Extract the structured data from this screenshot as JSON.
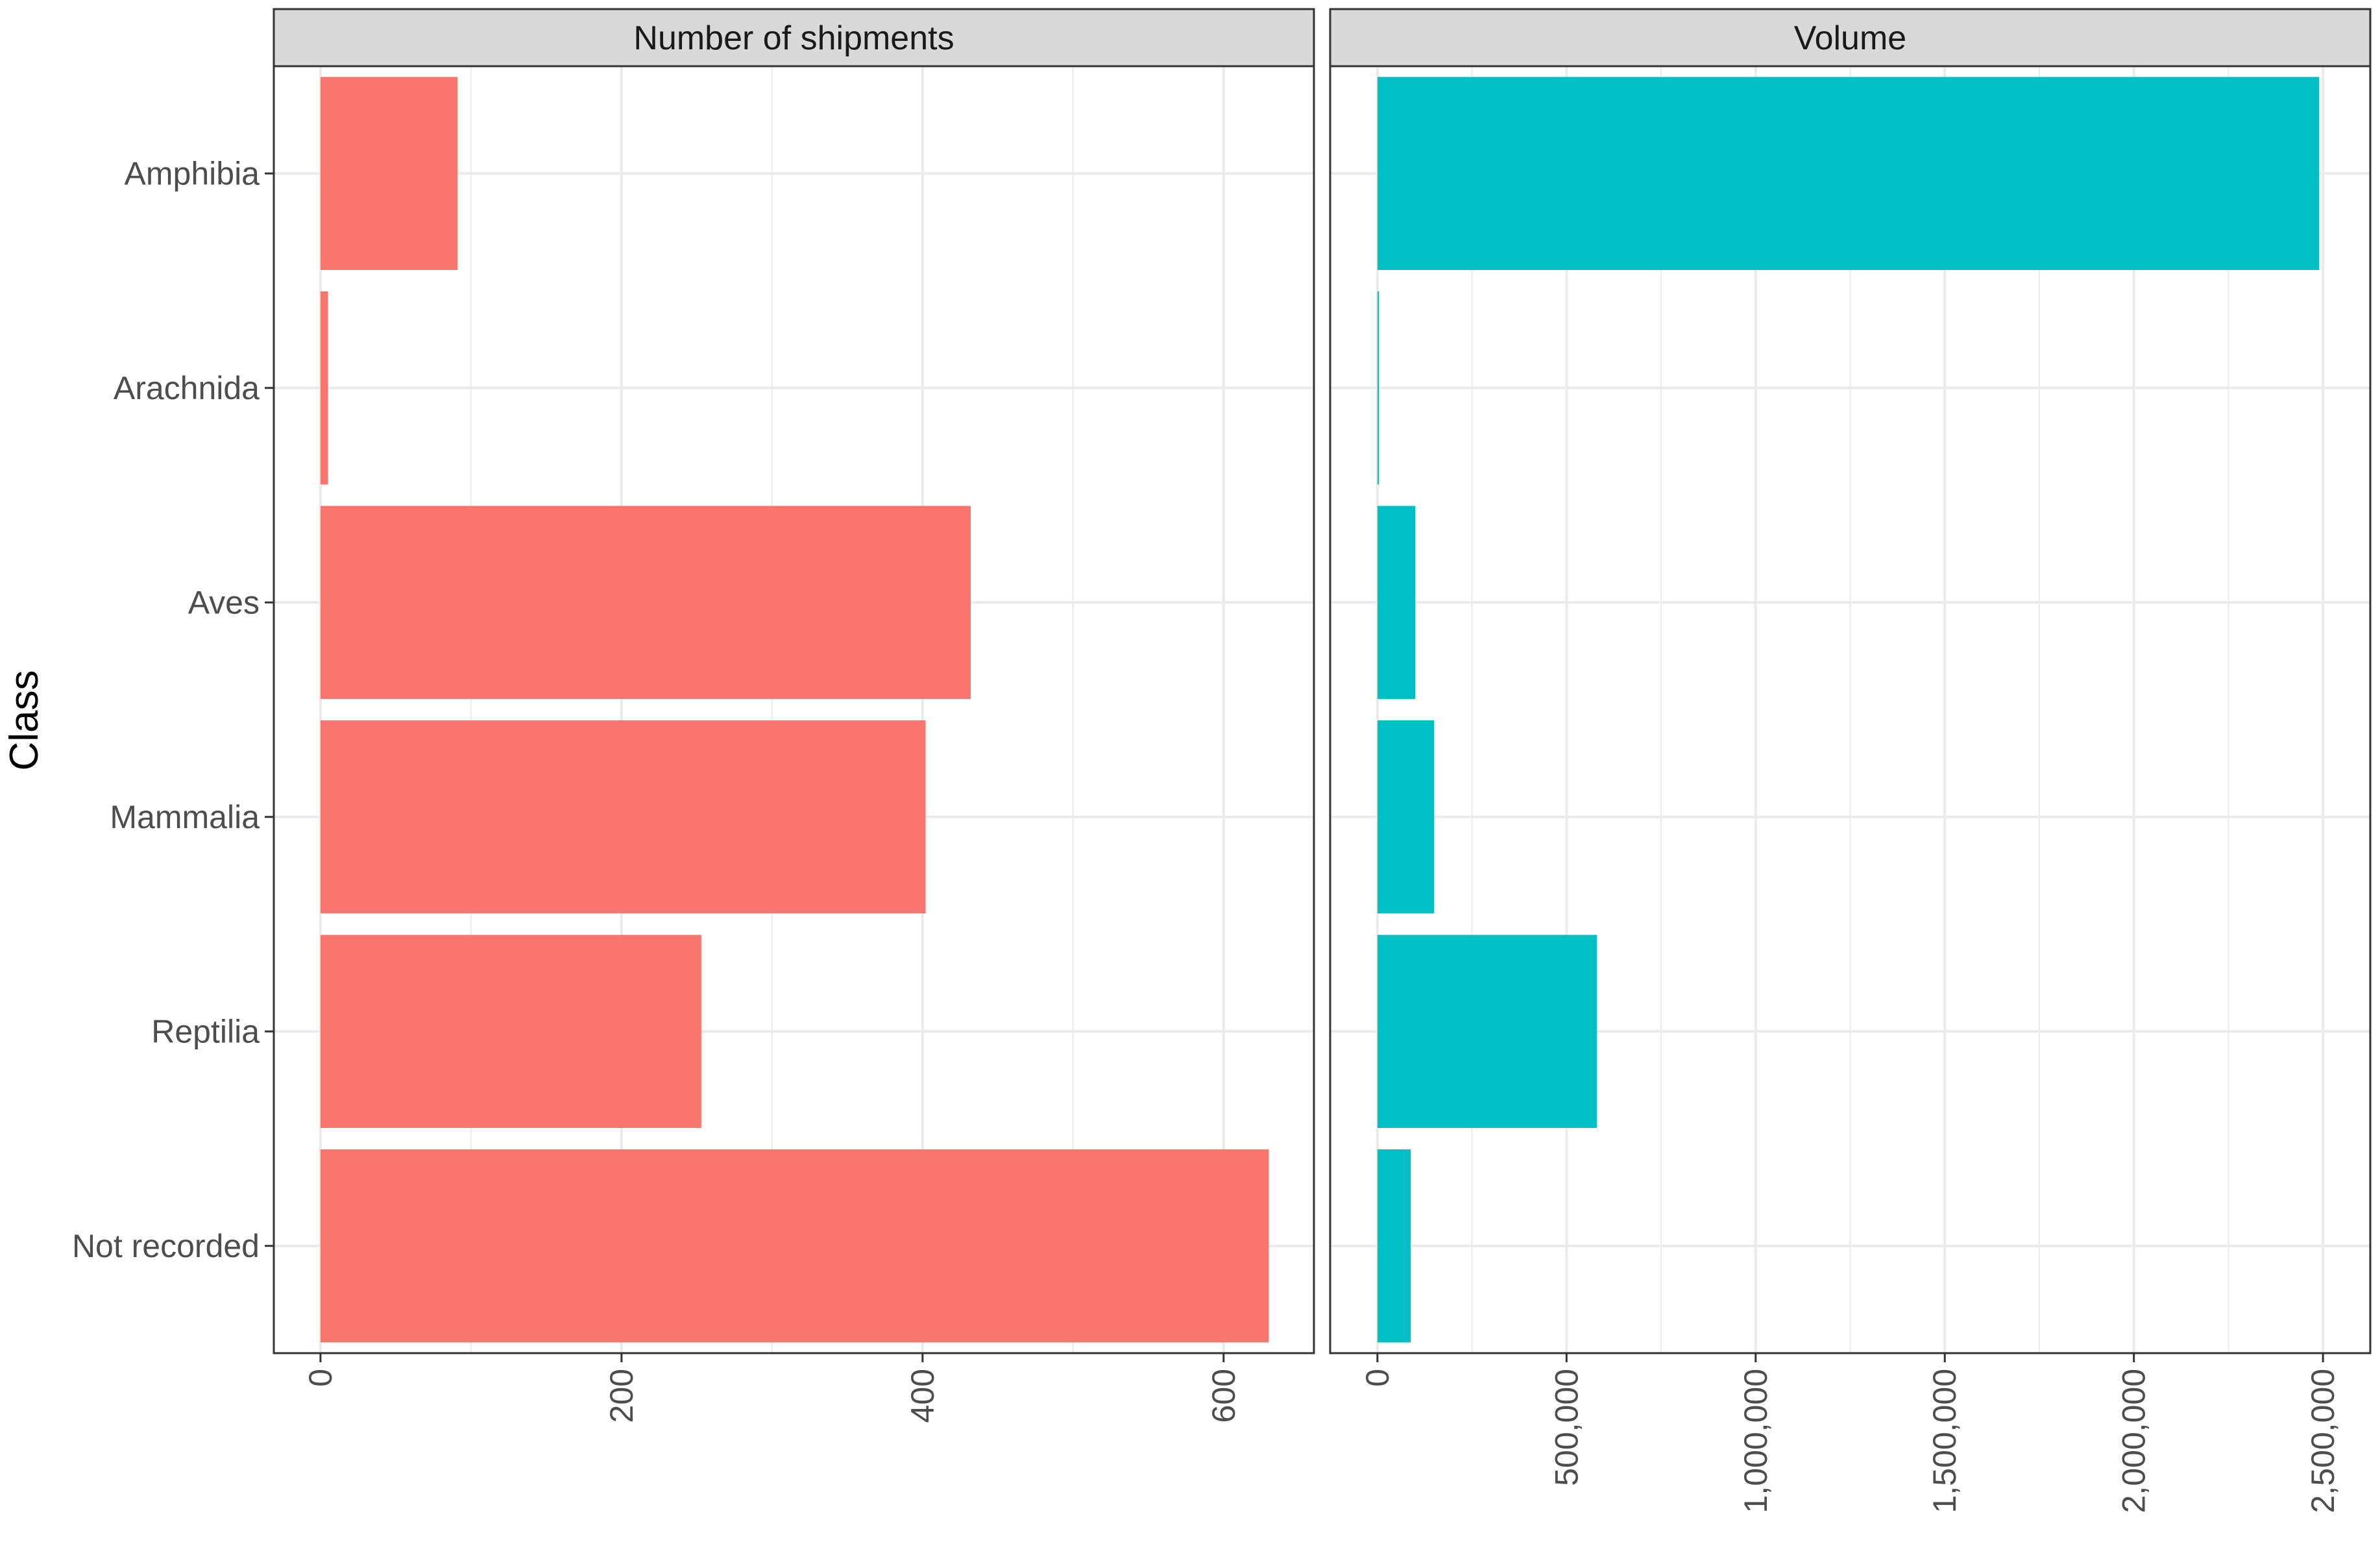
{
  "chart_data": {
    "type": "bar",
    "orientation": "horizontal",
    "ylabel": "Class",
    "categories": [
      "Amphibia",
      "Arachnida",
      "Aves",
      "Mammalia",
      "Reptilia",
      "Not recorded"
    ],
    "facets": [
      {
        "title": "Number of shipments",
        "color": "#F8766D",
        "values": [
          91,
          5,
          432,
          402,
          253,
          630
        ],
        "xlim": [
          -31,
          660
        ],
        "xticks": [
          0,
          200,
          400,
          600
        ],
        "xtick_labels": [
          "0",
          "200",
          "400",
          "600"
        ],
        "minor_xticks": [
          100,
          300,
          500
        ]
      },
      {
        "title": "Volume",
        "color": "#00BFC4",
        "values": [
          2490000,
          4000,
          100000,
          150000,
          580000,
          88000
        ],
        "xlim": [
          -125000,
          2625000
        ],
        "xticks": [
          0,
          500000,
          1000000,
          1500000,
          2000000,
          2500000
        ],
        "xtick_labels": [
          "0",
          "500,000",
          "1,000,000",
          "1,500,000",
          "2,000,000",
          "2,500,000"
        ],
        "minor_xticks": [
          250000,
          750000,
          1250000,
          1750000,
          2250000
        ]
      }
    ]
  },
  "colors": {
    "strip_fill": "#D9D9D9",
    "grid": "#EBEBEB",
    "border": "#333333"
  }
}
